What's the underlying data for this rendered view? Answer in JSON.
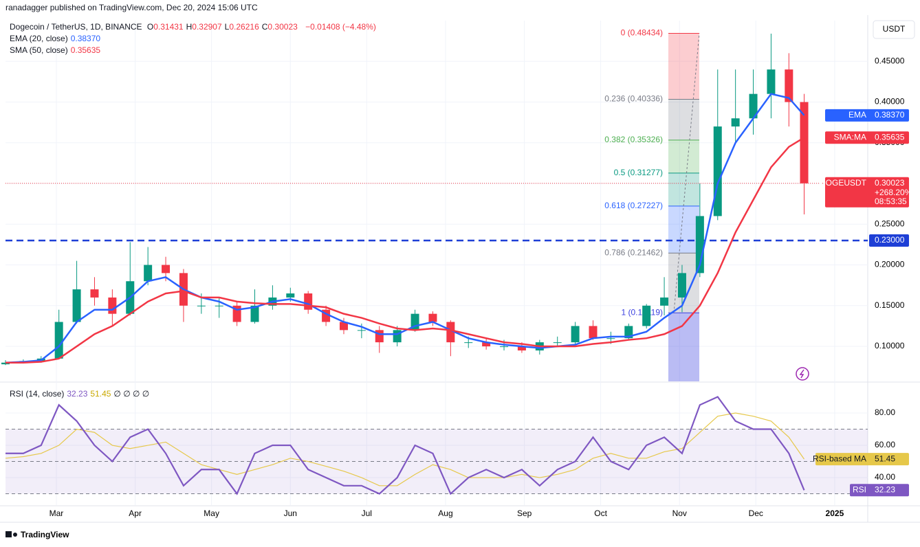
{
  "publisher": "ranadagger published on TradingView.com, Dec 20, 2024 15:06 UTC",
  "brand": "TradingView",
  "chart_data": {
    "type": "candlestick",
    "symbol": "Dogecoin / TetherUS, 1D, BINANCE",
    "ohlc": [
      {
        "label": "O",
        "value": "0.31431"
      },
      {
        "label": "H",
        "value": "0.32907"
      },
      {
        "label": "L",
        "value": "0.26216"
      },
      {
        "label": "C",
        "value": "0.30023"
      }
    ],
    "change": "−0.01408 (−4.48%)",
    "currency": "USDT",
    "x": [
      0,
      7,
      14,
      21,
      28,
      35,
      42,
      49,
      56,
      63,
      70,
      77,
      84,
      91,
      98,
      105,
      112,
      119,
      126,
      133,
      140,
      147,
      154,
      161,
      168,
      175,
      182,
      189,
      196,
      203,
      210,
      217,
      224,
      231,
      238,
      245,
      252,
      259,
      266,
      273,
      280,
      287,
      294,
      301,
      308,
      314
    ],
    "open": [
      0.078,
      0.08,
      0.082,
      0.085,
      0.13,
      0.17,
      0.16,
      0.14,
      0.18,
      0.2,
      0.19,
      0.15,
      0.15,
      0.15,
      0.13,
      0.15,
      0.16,
      0.165,
      0.145,
      0.13,
      0.12,
      0.12,
      0.105,
      0.12,
      0.14,
      0.13,
      0.105,
      0.105,
      0.1,
      0.1,
      0.095,
      0.105,
      0.105,
      0.125,
      0.11,
      0.11,
      0.125,
      0.15,
      0.16,
      0.19,
      0.26,
      0.37,
      0.38,
      0.41,
      0.44,
      0.4
    ],
    "high": [
      0.083,
      0.084,
      0.088,
      0.145,
      0.205,
      0.185,
      0.17,
      0.228,
      0.222,
      0.21,
      0.195,
      0.165,
      0.16,
      0.155,
      0.17,
      0.175,
      0.172,
      0.168,
      0.15,
      0.135,
      0.128,
      0.125,
      0.125,
      0.145,
      0.143,
      0.132,
      0.112,
      0.11,
      0.108,
      0.105,
      0.108,
      0.112,
      0.13,
      0.132,
      0.118,
      0.128,
      0.152,
      0.185,
      0.2,
      0.3,
      0.44,
      0.44,
      0.44,
      0.484,
      0.46,
      0.41
    ],
    "low": [
      0.077,
      0.079,
      0.08,
      0.084,
      0.128,
      0.15,
      0.125,
      0.138,
      0.175,
      0.18,
      0.13,
      0.14,
      0.135,
      0.125,
      0.128,
      0.145,
      0.155,
      0.14,
      0.125,
      0.115,
      0.11,
      0.092,
      0.1,
      0.118,
      0.125,
      0.088,
      0.098,
      0.096,
      0.095,
      0.092,
      0.09,
      0.1,
      0.103,
      0.108,
      0.103,
      0.108,
      0.122,
      0.138,
      0.142,
      0.185,
      0.255,
      0.35,
      0.36,
      0.38,
      0.37,
      0.262
    ],
    "close": [
      0.08,
      0.082,
      0.085,
      0.13,
      0.17,
      0.16,
      0.14,
      0.18,
      0.2,
      0.19,
      0.15,
      0.15,
      0.15,
      0.13,
      0.15,
      0.16,
      0.165,
      0.145,
      0.13,
      0.12,
      0.12,
      0.105,
      0.12,
      0.14,
      0.13,
      0.105,
      0.105,
      0.1,
      0.1,
      0.095,
      0.105,
      0.105,
      0.125,
      0.11,
      0.11,
      0.125,
      0.15,
      0.16,
      0.19,
      0.26,
      0.37,
      0.38,
      0.41,
      0.44,
      0.4,
      0.30023
    ],
    "up_color": "#089981",
    "down_color": "#f23645",
    "series": [
      {
        "name": "EMA (20, close)",
        "value_label": "0.38370",
        "tag": "EMA",
        "color": "#2962ff",
        "values": [
          0.08,
          0.081,
          0.083,
          0.1,
          0.13,
          0.145,
          0.145,
          0.16,
          0.18,
          0.185,
          0.17,
          0.16,
          0.155,
          0.145,
          0.148,
          0.155,
          0.158,
          0.152,
          0.14,
          0.13,
          0.124,
          0.115,
          0.115,
          0.125,
          0.13,
          0.12,
          0.11,
          0.105,
          0.102,
          0.1,
          0.098,
          0.1,
          0.102,
          0.11,
          0.112,
          0.112,
          0.118,
          0.135,
          0.15,
          0.2,
          0.3,
          0.35,
          0.38,
          0.41,
          0.405,
          0.3837
        ]
      },
      {
        "name": "SMA (50, close)",
        "value_label": "0.35635",
        "tag": "SMA:MA",
        "color": "#f23645",
        "values": [
          0.08,
          0.08,
          0.081,
          0.085,
          0.1,
          0.115,
          0.125,
          0.14,
          0.155,
          0.165,
          0.168,
          0.16,
          0.16,
          0.155,
          0.153,
          0.152,
          0.152,
          0.15,
          0.148,
          0.14,
          0.135,
          0.128,
          0.122,
          0.12,
          0.122,
          0.12,
          0.115,
          0.11,
          0.105,
          0.103,
          0.1,
          0.1,
          0.1,
          0.103,
          0.105,
          0.108,
          0.11,
          0.115,
          0.125,
          0.15,
          0.19,
          0.24,
          0.28,
          0.32,
          0.345,
          0.35635
        ]
      }
    ],
    "price_tag": {
      "label": "DOGEUSDT",
      "price": "0.30023",
      "change": "+268.20%",
      "countdown": "08:53:35"
    },
    "xlim": [
      0,
      339
    ],
    "xticks": [
      {
        "value": 20,
        "label": "Mar"
      },
      {
        "value": 51,
        "label": "Apr"
      },
      {
        "value": 81,
        "label": "May"
      },
      {
        "value": 112,
        "label": "Jun"
      },
      {
        "value": 142,
        "label": "Jul"
      },
      {
        "value": 173,
        "label": "Aug"
      },
      {
        "value": 204,
        "label": "Sep"
      },
      {
        "value": 234,
        "label": "Oct"
      },
      {
        "value": 265,
        "label": "Nov"
      },
      {
        "value": 295,
        "label": "Dec"
      },
      {
        "value": 326,
        "label": "2025"
      }
    ],
    "ylim": [
      0.057,
      0.5
    ],
    "yticks": [
      {
        "value": 0.1,
        "label": "0.10000"
      },
      {
        "value": 0.15,
        "label": "0.15000"
      },
      {
        "value": 0.2,
        "label": "0.20000"
      },
      {
        "value": 0.25,
        "label": "0.25000"
      },
      {
        "value": 0.3,
        "label": "0.30000"
      },
      {
        "value": 0.35,
        "label": "0.35000"
      },
      {
        "value": 0.4,
        "label": "0.40000"
      },
      {
        "value": 0.45,
        "label": "0.45000"
      }
    ],
    "hline": {
      "value": 0.23,
      "label": "0.23000",
      "color": "#1e3fd6"
    },
    "fib": [
      {
        "value": 0.48434,
        "label": "0 (0.48434)",
        "color": "#f23645"
      },
      {
        "value": 0.40336,
        "label": "0.236 (0.40336)",
        "color": "#787b86"
      },
      {
        "value": 0.35326,
        "label": "0.382 (0.35326)",
        "color": "#4caf50"
      },
      {
        "value": 0.31277,
        "label": "0.5 (0.31277)",
        "color": "#089981"
      },
      {
        "value": 0.27227,
        "label": "0.618 (0.27227)",
        "color": "#2962ff"
      },
      {
        "value": 0.21462,
        "label": "0.786 (0.21462)",
        "color": "#787b86"
      },
      {
        "value": 0.14119,
        "label": "1 (0.14119)",
        "color": "#3a3fe0"
      }
    ],
    "rsi": {
      "name": "RSI (14, close)",
      "value_label": "32.23",
      "ma_label": "51.45",
      "extra": "∅ ∅ ∅ ∅",
      "tag": "RSI",
      "ma_tag": "RSI-based MA",
      "color": "#7e57c2",
      "ma_color": "#e6c84a",
      "values": [
        55,
        55,
        60,
        85,
        75,
        60,
        50,
        65,
        70,
        55,
        35,
        45,
        45,
        30,
        55,
        60,
        60,
        45,
        40,
        35,
        35,
        30,
        40,
        60,
        55,
        30,
        40,
        45,
        40,
        45,
        35,
        45,
        50,
        65,
        50,
        45,
        60,
        65,
        55,
        85,
        90,
        75,
        70,
        70,
        55,
        32.23
      ],
      "ma": [
        52,
        53,
        55,
        60,
        70,
        68,
        60,
        58,
        60,
        62,
        55,
        48,
        45,
        42,
        45,
        48,
        52,
        50,
        47,
        44,
        40,
        35,
        35,
        42,
        48,
        45,
        40,
        40,
        40,
        42,
        40,
        42,
        45,
        52,
        55,
        52,
        52,
        56,
        58,
        68,
        78,
        80,
        78,
        75,
        65,
        51.45
      ],
      "ylim": [
        23,
        98.3
      ],
      "levels": [
        70,
        50,
        30
      ],
      "yticks": [
        {
          "value": 40,
          "label": "40.00"
        },
        {
          "value": 60,
          "label": "60.00"
        },
        {
          "value": 80,
          "label": "80.00"
        }
      ]
    }
  }
}
